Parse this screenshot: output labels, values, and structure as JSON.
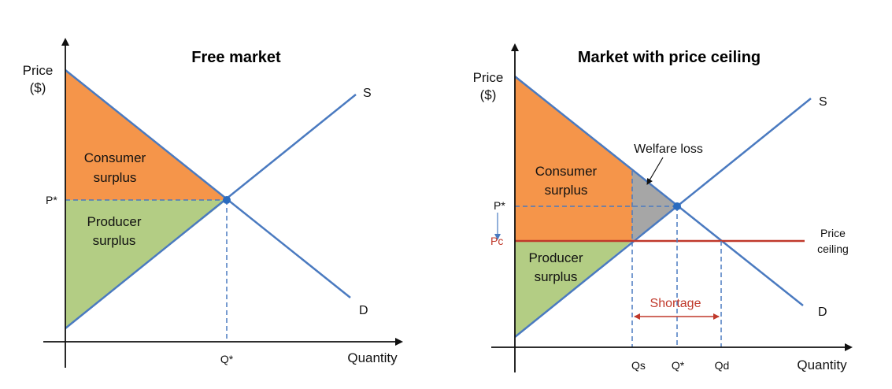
{
  "colors": {
    "curve": "#4a7ac0",
    "consumer_fill": "#f5954a",
    "producer_fill": "#b3cd84",
    "welfare_fill": "#a6a6a6",
    "ceiling": "#c0392b",
    "axis": "#111111"
  },
  "left": {
    "title": "Free market",
    "y_axis_label_line1": "Price",
    "y_axis_label_line2": "($)",
    "x_axis_label": "Quantity",
    "supply_label": "S",
    "demand_label": "D",
    "price_eq_label": "P*",
    "qty_eq_label": "Q*",
    "consumer_line1": "Consumer",
    "consumer_line2": "surplus",
    "producer_line1": "Producer",
    "producer_line2": "surplus"
  },
  "right": {
    "title": "Market with price ceiling",
    "y_axis_label_line1": "Price",
    "y_axis_label_line2": "($)",
    "x_axis_label": "Quantity",
    "supply_label": "S",
    "demand_label": "D",
    "price_eq_label": "P*",
    "price_ceiling_label": "Pc",
    "qs_label": "Qs",
    "qty_eq_label": "Q*",
    "qd_label": "Qd",
    "consumer_line1": "Consumer",
    "consumer_line2": "surplus",
    "producer_line1": "Producer",
    "producer_line2": "surplus",
    "welfare_loss_label": "Welfare loss",
    "ceiling_line1": "Price",
    "ceiling_line2": "ceiling",
    "shortage_label": "Shortage"
  }
}
